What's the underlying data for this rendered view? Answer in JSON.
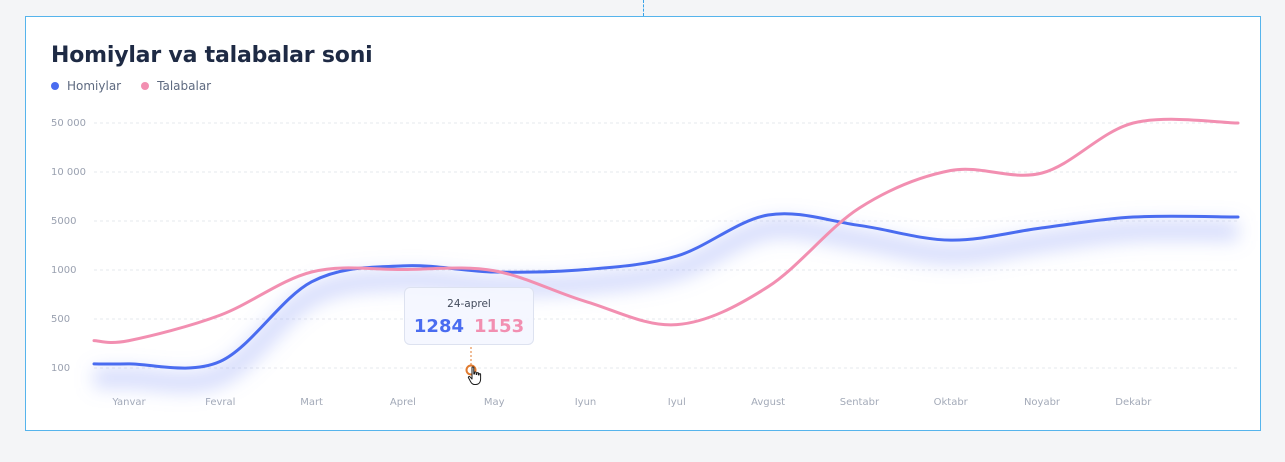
{
  "chart_data": {
    "type": "line",
    "title": "Homiylar va talabalar soni",
    "categories": [
      "Yanvar",
      "Fevral",
      "Mart",
      "Aprel",
      "May",
      "Iyun",
      "Iyul",
      "Avgust",
      "Sentabr",
      "Oktabr",
      "Noyabr",
      "Dekabr"
    ],
    "y_ticks": [
      "50 000",
      "10 000",
      "5000",
      "1000",
      "500",
      "100"
    ],
    "series": [
      {
        "name": "Homiylar",
        "color": "#4a6cf0",
        "values": [
          150,
          170,
          900,
          1500,
          1000,
          1200,
          2300,
          5800,
          4800,
          3600,
          4600,
          5600
        ]
      },
      {
        "name": "Talabalar",
        "color": "#f28fb1",
        "values": [
          340,
          560,
          1000,
          1200,
          1100,
          700,
          470,
          850,
          6500,
          12000,
          10000,
          50000
        ]
      }
    ],
    "tooltip": {
      "date": "24-aprel",
      "homiylar": "1284",
      "talabalar": "1153"
    },
    "grid": true,
    "legend": "top-left"
  }
}
